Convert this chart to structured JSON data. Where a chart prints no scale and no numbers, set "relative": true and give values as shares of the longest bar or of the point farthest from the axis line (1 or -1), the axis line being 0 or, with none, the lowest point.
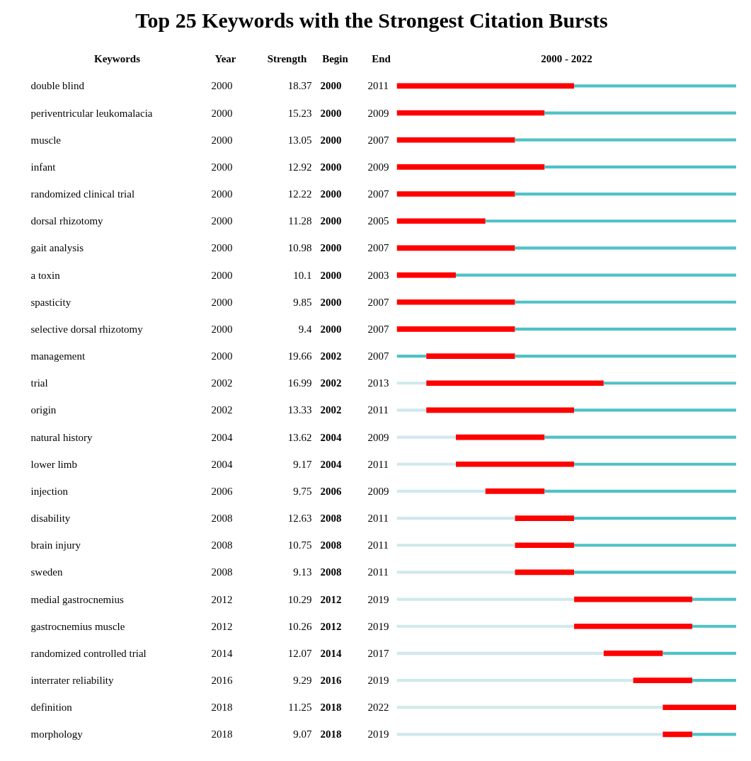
{
  "chart_data": {
    "type": "bar",
    "orientation": "horizontal",
    "title": "Top 25 Keywords with the Strongest Citation Bursts",
    "relative": true,
    "stacked": true,
    "tick_labels": false,
    "grid": false,
    "categories": [
      "double blind",
      "periventricular leukomalacia",
      "muscle",
      "infant",
      "randomized clinical trial",
      "dorsal rhizotomy",
      "gait analysis",
      "a toxin",
      "spasticity",
      "selective dorsal rhizotomy",
      "management",
      "trial",
      "origin",
      "natural history",
      "lower limb",
      "injection",
      "disability",
      "brain injury",
      "sweden",
      "medial gastrocnemius",
      "gastrocnemius muscle",
      "randomized controlled trial",
      "interrater reliability",
      "definition",
      "morphology"
    ],
    "series": [
      {
        "color": "#cfe9ec",
        "values": [
          0,
          0,
          0,
          0,
          0,
          0,
          0,
          0,
          0,
          0,
          0,
          0.087,
          0.087,
          0.174,
          0.174,
          0.261,
          0.348,
          0.348,
          0.348,
          0.522,
          0.522,
          0.609,
          0.696,
          0.783,
          0.783
        ]
      },
      {
        "color": "#4fc1c6",
        "values": [
          0,
          0,
          0,
          0,
          0,
          0,
          0,
          0,
          0,
          0,
          0.087,
          0,
          0,
          0,
          0,
          0,
          0,
          0,
          0,
          0,
          0,
          0,
          0,
          0,
          0
        ]
      },
      {
        "color": "#ff0000",
        "values": [
          0.522,
          0.435,
          0.348,
          0.435,
          0.348,
          0.261,
          0.348,
          0.174,
          0.348,
          0.348,
          0.261,
          0.522,
          0.435,
          0.261,
          0.348,
          0.174,
          0.174,
          0.174,
          0.174,
          0.348,
          0.348,
          0.174,
          0.174,
          0.217,
          0.087
        ]
      },
      {
        "color": "#4fc1c6",
        "values": [
          0.478,
          0.565,
          0.652,
          0.565,
          0.652,
          0.739,
          0.652,
          0.826,
          0.652,
          0.652,
          0.652,
          0.391,
          0.478,
          0.565,
          0.478,
          0.565,
          0.478,
          0.478,
          0.478,
          0.13,
          0.13,
          0.217,
          0.13,
          0,
          0.13
        ]
      }
    ],
    "annotations": [
      "Keywords",
      "Year",
      "Strength",
      "Begin",
      "End",
      "2000 - 2022",
      "2000",
      "18.37",
      "2000",
      "2011",
      "2000",
      "15.23",
      "2000",
      "2009",
      "2000",
      "13.05",
      "2000",
      "2007",
      "2000",
      "12.92",
      "2000",
      "2009",
      "2000",
      "12.22",
      "2000",
      "2007",
      "2000",
      "11.28",
      "2000",
      "2005",
      "2000",
      "10.98",
      "2000",
      "2007",
      "2000",
      "10.1",
      "2000",
      "2003",
      "2000",
      "9.85",
      "2000",
      "2007",
      "2000",
      "9.4",
      "2000",
      "2007",
      "2000",
      "19.66",
      "2002",
      "2007",
      "2002",
      "16.99",
      "2002",
      "2013",
      "2002",
      "13.33",
      "2002",
      "2011",
      "2004",
      "13.62",
      "2004",
      "2009",
      "2004",
      "9.17",
      "2004",
      "2011",
      "2006",
      "9.75",
      "2006",
      "2009",
      "2008",
      "12.63",
      "2008",
      "2011",
      "2008",
      "10.75",
      "2008",
      "2011",
      "2008",
      "9.13",
      "2008",
      "2011",
      "2012",
      "10.29",
      "2012",
      "2019",
      "2012",
      "10.26",
      "2012",
      "2019",
      "2014",
      "12.07",
      "2014",
      "2017",
      "2016",
      "9.29",
      "2016",
      "2019",
      "2018",
      "11.25",
      "2018",
      "2022",
      "2018",
      "9.07",
      "2018",
      "2019"
    ]
  }
}
